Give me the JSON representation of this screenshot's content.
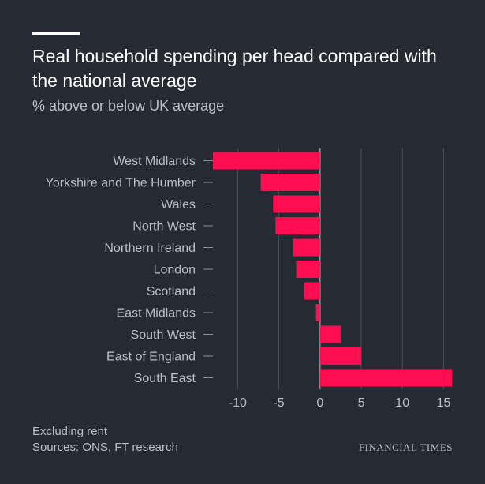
{
  "chart_data": {
    "type": "bar",
    "orientation": "horizontal",
    "title": "Real household spending per head compared with the national average",
    "subtitle": "% above or below UK average",
    "categories": [
      "West Midlands",
      "Yorkshire and The Humber",
      "Wales",
      "North West",
      "Northern Ireland",
      "London",
      "Scotland",
      "East Midlands",
      "South West",
      "East of England",
      "South East"
    ],
    "values": [
      -13.0,
      -7.2,
      -5.7,
      -5.4,
      -3.3,
      -2.9,
      -1.9,
      -0.5,
      2.5,
      5.0,
      16.0
    ],
    "xlim": [
      -13,
      16
    ],
    "xticks": [
      -10,
      -5,
      0,
      5,
      10,
      15
    ],
    "xtick_labels": [
      "-10",
      "-5",
      "0",
      "5",
      "10",
      "15"
    ],
    "grid": true,
    "bar_color": "#ff0d51"
  },
  "footer": {
    "note": "Excluding rent",
    "source": "Sources: ONS, FT research",
    "brand": "FINANCIAL TIMES"
  },
  "colors": {
    "background": "#262a33",
    "text": "#ffffff",
    "muted": "#bcbec4",
    "grid": "#4a4f5a",
    "bar": "#ff0d51"
  }
}
